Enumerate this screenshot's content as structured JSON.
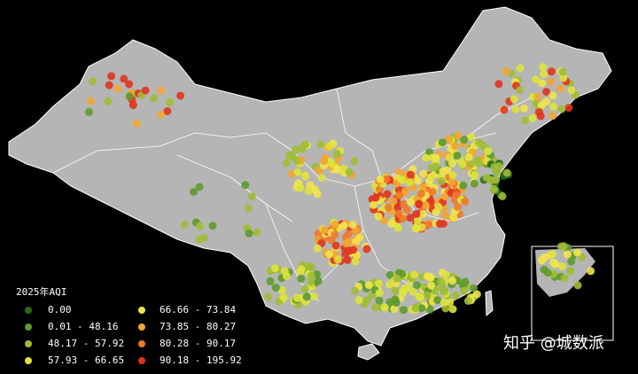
{
  "legend": {
    "title": "2025年AQI",
    "items": [
      {
        "label": "0.00",
        "color": "#2d6a1c"
      },
      {
        "label": "0.01 - 48.16",
        "color": "#5e9a2e"
      },
      {
        "label": "48.17 - 57.92",
        "color": "#9fbd36"
      },
      {
        "label": "57.93 - 66.65",
        "color": "#dde33c"
      },
      {
        "label": "66.66 - 73.84",
        "color": "#f1e44a"
      },
      {
        "label": "73.85 - 80.27",
        "color": "#f2a533"
      },
      {
        "label": "80.28 - 90.17",
        "color": "#ee7a2a"
      },
      {
        "label": "90.18 - 195.92",
        "color": "#e0341f"
      }
    ]
  },
  "watermark": "知乎 @城数派"
}
